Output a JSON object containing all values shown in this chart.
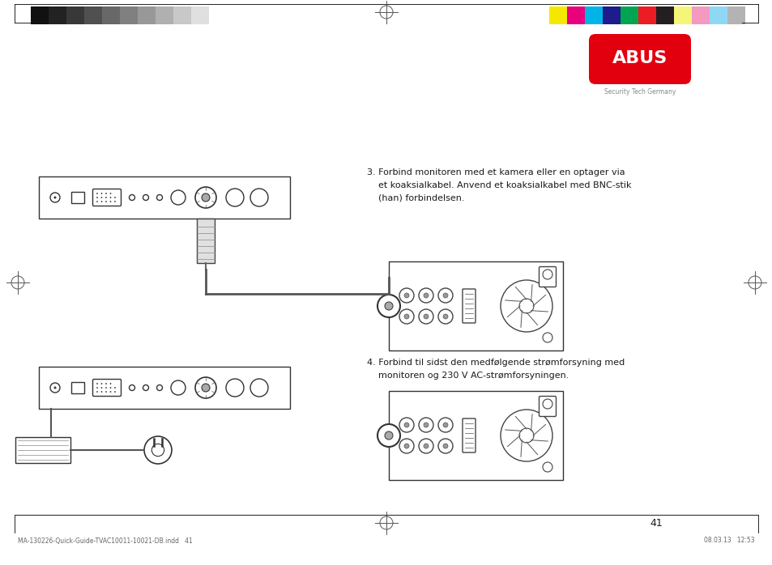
{
  "bg_color": "#ffffff",
  "page_number": "41",
  "text_step3_line1": "3. Forbind monitoren med et kamera eller en optager via",
  "text_step3_line2": "    et koaksialkabel. Anvend et koaksialkabel med BNC-stik",
  "text_step3_line3": "    (han) forbindelsen.",
  "text_step4_line1": "4. Forbind til sidst den medfølgende strømforsyning med",
  "text_step4_line2": "    monitoren og 230 V AC-strømforsyningen.",
  "footer_left": "MA-130226-Quick-Guide-TVAC10011-10021-DB.indd   41",
  "footer_right": "08.03.13   12:53",
  "abus_text": "Security Tech Germany",
  "gray_bars": [
    "#111111",
    "#222222",
    "#383838",
    "#505050",
    "#686868",
    "#808080",
    "#989898",
    "#b0b0b0",
    "#c8c8c8",
    "#e0e0e0"
  ],
  "color_bars_right": [
    "#f5e800",
    "#e8007d",
    "#00b4e8",
    "#1e1b8c",
    "#00a550",
    "#ed1c24",
    "#231f20",
    "#f5f57a",
    "#f49ac1",
    "#8fd8f5",
    "#b3b3b3"
  ]
}
